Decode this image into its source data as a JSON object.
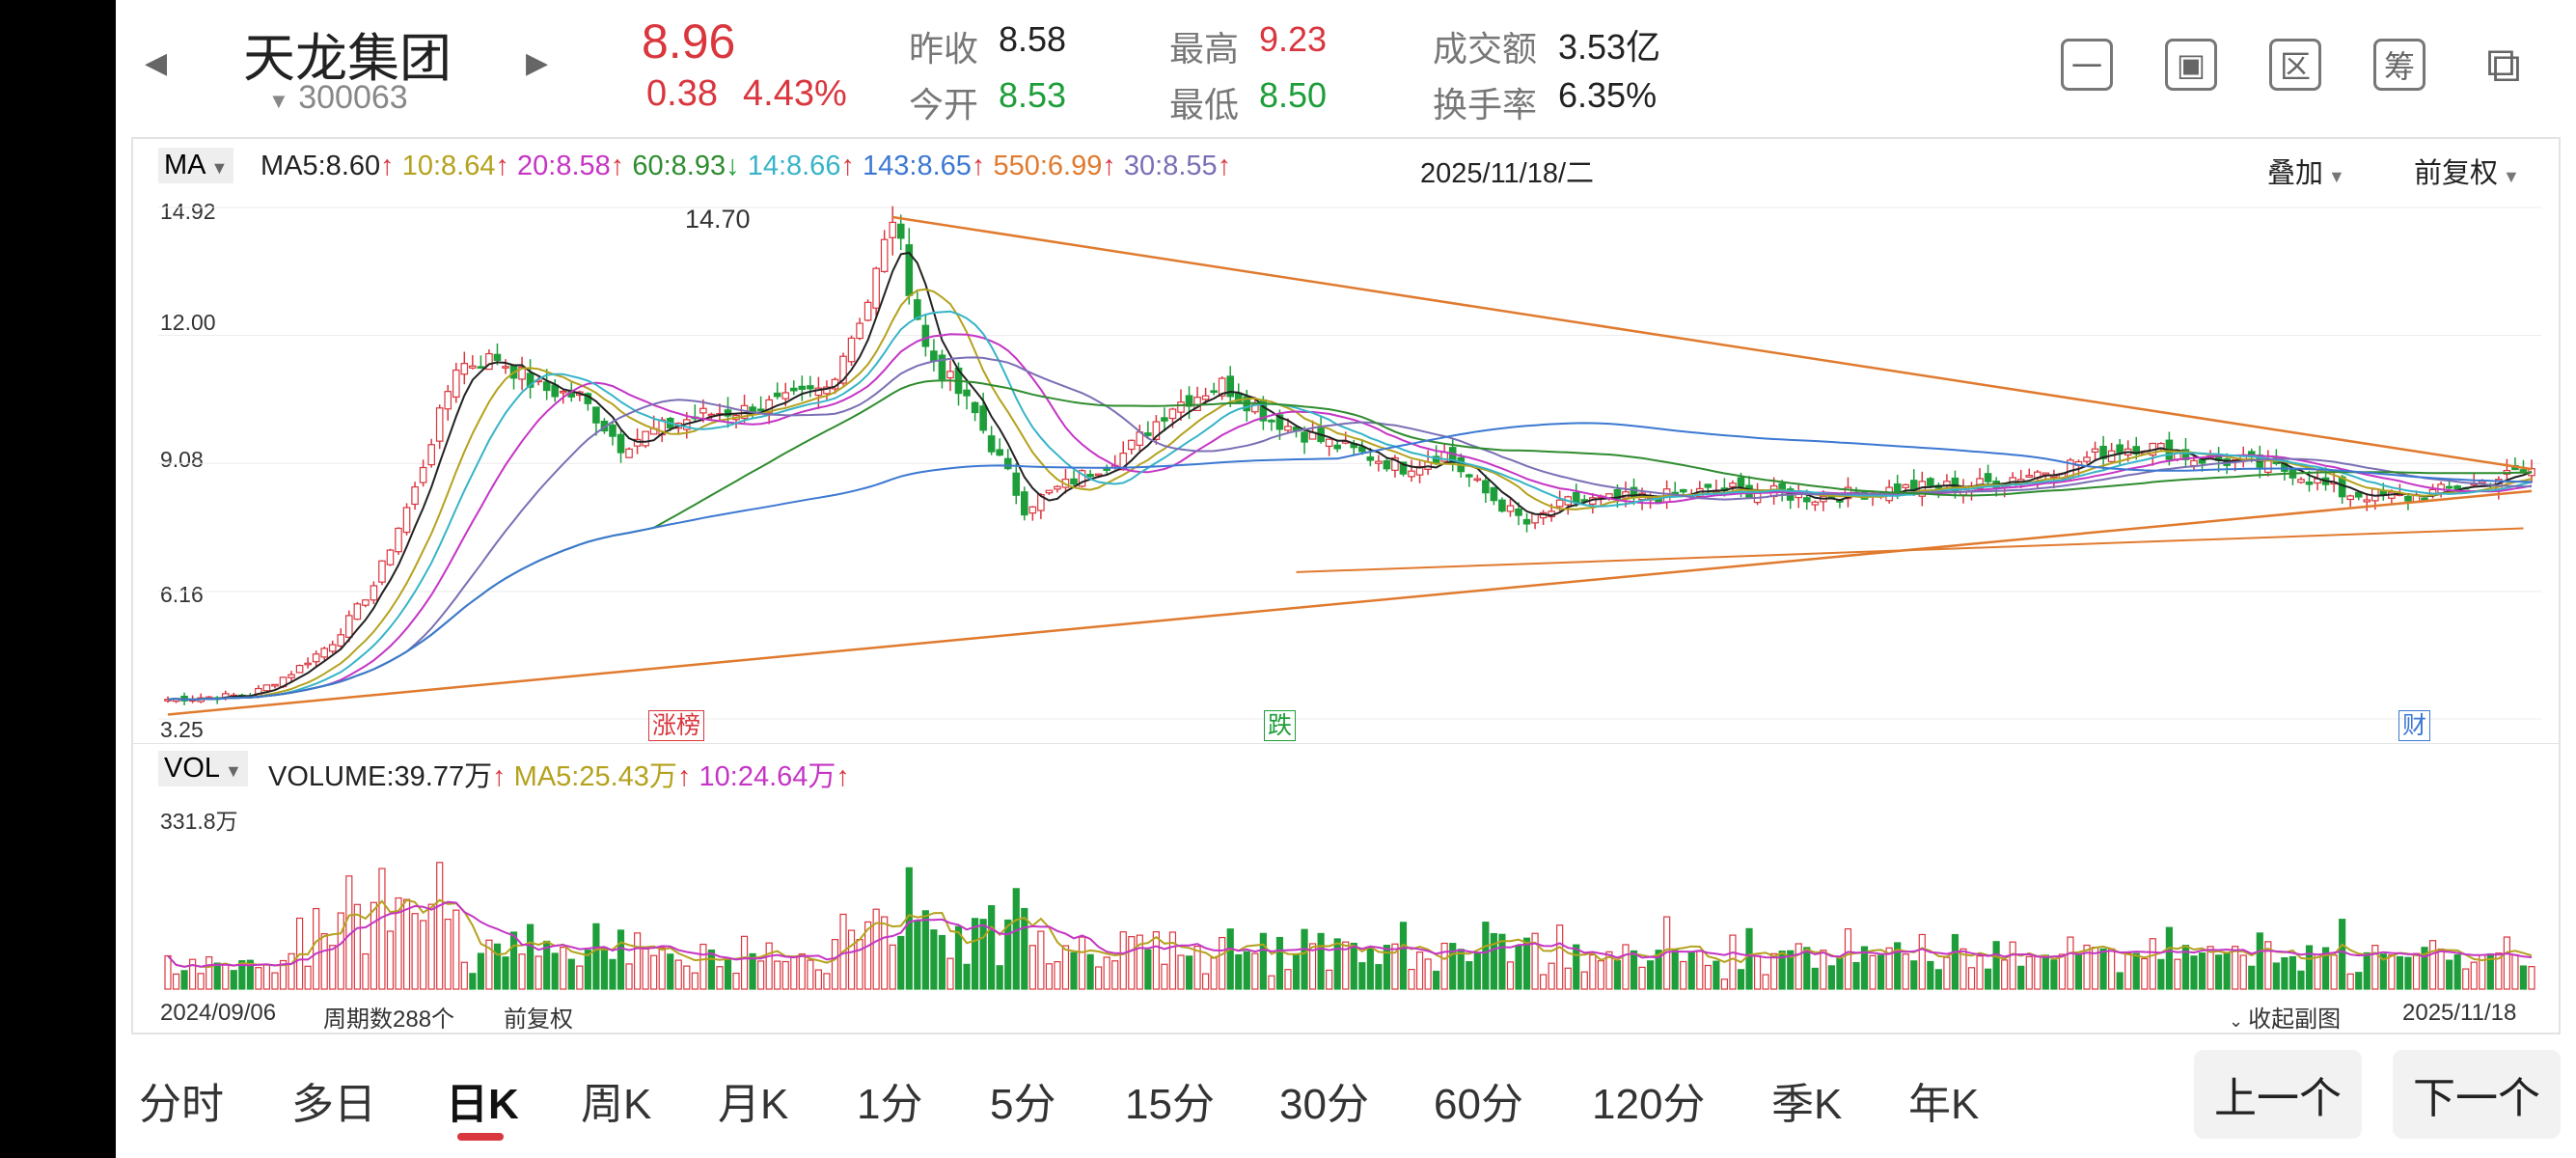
{
  "header": {
    "stock_name": "天龙集团",
    "stock_code": "300063",
    "price": "8.96",
    "change": "0.38",
    "change_pct": "4.43%",
    "quotes": [
      {
        "label": "昨收",
        "value": "8.58"
      },
      {
        "label": "今开",
        "value": "8.53"
      },
      {
        "label": "最高",
        "value": "9.23"
      },
      {
        "label": "最低",
        "value": "8.50"
      },
      {
        "label": "成交额",
        "value": "3.53亿"
      },
      {
        "label": "换手率",
        "value": "6.35%"
      }
    ],
    "tools": [
      "一",
      "▣",
      "区",
      "筹",
      "⧉"
    ]
  },
  "ma_bar": {
    "selector": "MA",
    "items": [
      {
        "text": "MA5:8.60",
        "arrow": "↑",
        "color": "#222222"
      },
      {
        "text": "10:8.64",
        "arrow": "↑",
        "color": "#b4a21e"
      },
      {
        "text": "20:8.58",
        "arrow": "↑",
        "color": "#c535c5"
      },
      {
        "text": "60:8.93",
        "arrow": "↓",
        "color": "#2f8c2f"
      },
      {
        "text": "14:8.66",
        "arrow": "↑",
        "color": "#37b4c8"
      },
      {
        "text": "143:8.65",
        "arrow": "↑",
        "color": "#3c78d2"
      },
      {
        "text": "550:6.99",
        "arrow": "↑",
        "color": "#e07a2e"
      },
      {
        "text": "30:8.55",
        "arrow": "↑",
        "color": "#7a6fb5"
      }
    ],
    "date": "2025/11/18/二",
    "overlay": "叠加",
    "adjust": "前复权"
  },
  "price_axis": [
    "14.92",
    "12.00",
    "9.08",
    "6.16",
    "3.25"
  ],
  "peak_label": "14.70",
  "markers": {
    "rise": "涨榜",
    "fall": "跌",
    "finance": "财"
  },
  "vol_bar": {
    "selector": "VOL",
    "items": [
      {
        "text": "VOLUME:39.77万",
        "arrow": "↑",
        "color": "#222222"
      },
      {
        "text": "MA5:25.43万",
        "arrow": "↑",
        "color": "#b4a21e"
      },
      {
        "text": "10:24.64万",
        "arrow": "↑",
        "color": "#c535c5"
      }
    ],
    "max_label": "331.8万"
  },
  "footer": {
    "start_date": "2024/09/06",
    "period_count": "周期数288个",
    "adjust": "前复权",
    "collapse": "收起副图",
    "end_date": "2025/11/18"
  },
  "tabs": [
    "分时",
    "多日",
    "日K",
    "周K",
    "月K",
    "1分",
    "5分",
    "15分",
    "30分",
    "60分",
    "120分",
    "季K",
    "年K"
  ],
  "active_tab": "日K",
  "nav": {
    "prev": "上一个",
    "next": "下一个"
  },
  "colors": {
    "up": "#d9363e",
    "down": "#1e9e3a",
    "trend": "#e07a2e",
    "tab_indicator": "#d9363e"
  },
  "chart_data": {
    "type": "candlestick",
    "x_range": [
      "2024/09/06",
      "2025/11/18"
    ],
    "periods": 288,
    "ylim": [
      3.25,
      14.92
    ],
    "yticks": [
      14.92,
      12.0,
      9.08,
      6.16,
      3.25
    ],
    "close_path": [
      [
        0,
        3.7
      ],
      [
        10,
        3.8
      ],
      [
        15,
        4.3
      ],
      [
        20,
        5.0
      ],
      [
        25,
        6.3
      ],
      [
        30,
        8.5
      ],
      [
        35,
        11.3
      ],
      [
        40,
        11.5
      ],
      [
        45,
        10.8
      ],
      [
        50,
        10.6
      ],
      [
        55,
        9.5
      ],
      [
        60,
        9.9
      ],
      [
        65,
        10.2
      ],
      [
        70,
        10.3
      ],
      [
        75,
        10.5
      ],
      [
        80,
        10.8
      ],
      [
        85,
        12.8
      ],
      [
        88,
        14.7
      ],
      [
        92,
        11.7
      ],
      [
        98,
        10.2
      ],
      [
        104,
        8.1
      ],
      [
        110,
        8.7
      ],
      [
        116,
        9.3
      ],
      [
        122,
        10.4
      ],
      [
        128,
        10.9
      ],
      [
        134,
        10.1
      ],
      [
        140,
        9.6
      ],
      [
        150,
        9.0
      ],
      [
        155,
        9.3
      ],
      [
        160,
        8.4
      ],
      [
        165,
        7.7
      ],
      [
        170,
        8.2
      ],
      [
        180,
        8.3
      ],
      [
        190,
        8.5
      ],
      [
        200,
        8.3
      ],
      [
        210,
        8.5
      ],
      [
        220,
        8.6
      ],
      [
        230,
        9.0
      ],
      [
        236,
        9.4
      ],
      [
        240,
        9.5
      ],
      [
        246,
        9.2
      ],
      [
        252,
        9.1
      ],
      [
        258,
        8.9
      ],
      [
        264,
        8.4
      ],
      [
        272,
        8.3
      ],
      [
        280,
        8.6
      ],
      [
        287,
        8.96
      ]
    ],
    "volume_max": 3318000,
    "volume_last": 397700,
    "volume_ma5": 254300,
    "volume_ma10": 246400
  }
}
